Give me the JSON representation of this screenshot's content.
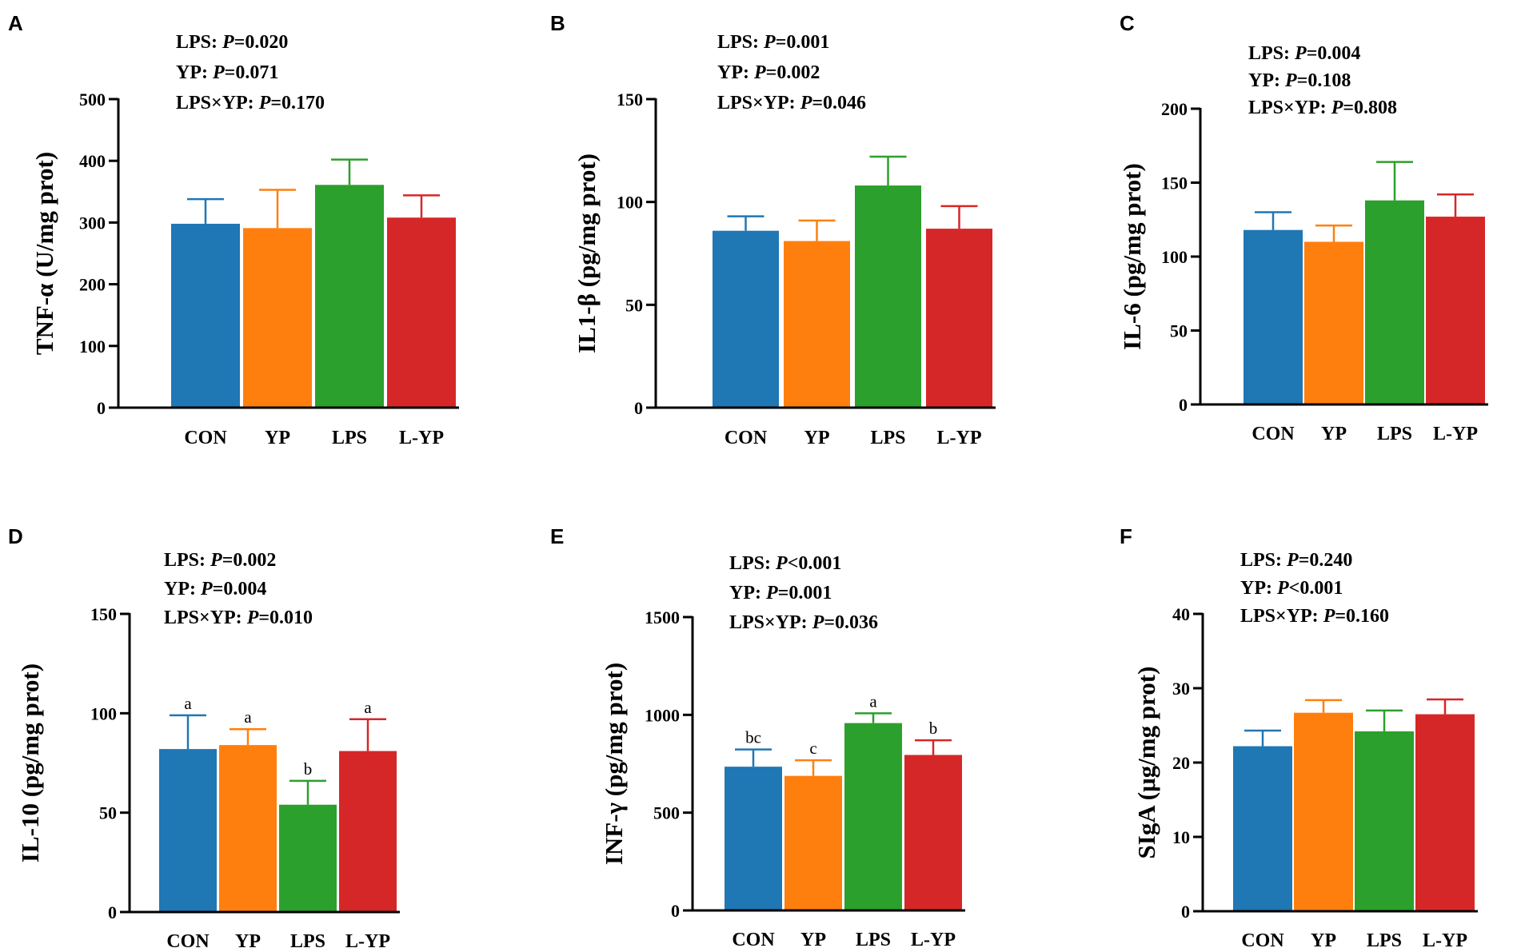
{
  "colors": {
    "CON": "#1f77b4",
    "YP": "#ff7f0e",
    "LPS": "#2ca02c",
    "L-YP": "#d62728",
    "axis": "#000000"
  },
  "chart_data": [
    {
      "panel": "A",
      "type": "bar",
      "ylabel": "TNF-α (U/mg prot)",
      "categories": [
        "CON",
        "YP",
        "LPS",
        "L-YP"
      ],
      "values": [
        298,
        291,
        361,
        308
      ],
      "errors": [
        40,
        62,
        41,
        36
      ],
      "ylim": [
        0,
        500
      ],
      "yticks": [
        0,
        100,
        200,
        300,
        400,
        500
      ],
      "letters": [
        "",
        "",
        "",
        ""
      ],
      "stats": [
        {
          "label": "LPS: ",
          "p": "P",
          "val": "=0.020"
        },
        {
          "label": "YP: ",
          "p": "P",
          "val": "=0.071"
        },
        {
          "label": "LPS×YP: ",
          "p": "P",
          "val": "=0.170"
        }
      ]
    },
    {
      "panel": "B",
      "type": "bar",
      "ylabel": "IL1-β (pg/mg prot)",
      "categories": [
        "CON",
        "YP",
        "LPS",
        "L-YP"
      ],
      "values": [
        86,
        81,
        108,
        87
      ],
      "errors": [
        7,
        10,
        14,
        11
      ],
      "ylim": [
        0,
        150
      ],
      "yticks": [
        0,
        50,
        100,
        150
      ],
      "letters": [
        "",
        "",
        "",
        ""
      ],
      "stats": [
        {
          "label": "LPS: ",
          "p": "P",
          "val": "=0.001"
        },
        {
          "label": "YP: ",
          "p": "P",
          "val": "=0.002"
        },
        {
          "label": "LPS×YP: ",
          "p": "P",
          "val": "=0.046"
        }
      ]
    },
    {
      "panel": "C",
      "type": "bar",
      "ylabel": "IL-6 (pg/mg prot)",
      "categories": [
        "CON",
        "YP",
        "LPS",
        "L-YP"
      ],
      "values": [
        118,
        110,
        138,
        127
      ],
      "errors": [
        12,
        11,
        26,
        15
      ],
      "ylim": [
        0,
        200
      ],
      "yticks": [
        0,
        50,
        100,
        150,
        200
      ],
      "letters": [
        "",
        "",
        "",
        ""
      ],
      "stats": [
        {
          "label": "LPS: ",
          "p": "P",
          "val": "=0.004"
        },
        {
          "label": "YP: ",
          "p": "P",
          "val": "=0.108"
        },
        {
          "label": "LPS×YP: ",
          "p": "P",
          "val": "=0.808"
        }
      ]
    },
    {
      "panel": "D",
      "type": "bar",
      "ylabel": "IL-10 (pg/mg prot)",
      "categories": [
        "CON",
        "YP",
        "LPS",
        "L-YP"
      ],
      "values": [
        82,
        84,
        54,
        81
      ],
      "errors": [
        17,
        8,
        12,
        16
      ],
      "ylim": [
        0,
        150
      ],
      "yticks": [
        0,
        50,
        100,
        150
      ],
      "letters": [
        "a",
        "a",
        "b",
        "a"
      ],
      "stats": [
        {
          "label": "LPS: ",
          "p": "P",
          "val": "=0.002"
        },
        {
          "label": "YP: ",
          "p": "P",
          "val": "=0.004"
        },
        {
          "label": "LPS×YP: ",
          "p": "P",
          "val": "=0.010"
        }
      ]
    },
    {
      "panel": "E",
      "type": "bar",
      "ylabel": "INF-γ (pg/mg prot)",
      "categories": [
        "CON",
        "YP",
        "LPS",
        "L-YP"
      ],
      "values": [
        735,
        688,
        958,
        795
      ],
      "errors": [
        88,
        80,
        50,
        75
      ],
      "ylim": [
        0,
        1500
      ],
      "yticks": [
        0,
        500,
        1000,
        1500
      ],
      "letters": [
        "bc",
        "c",
        "a",
        "b"
      ],
      "stats": [
        {
          "label": "LPS: ",
          "p": "P",
          "val": "<0.001"
        },
        {
          "label": "YP: ",
          "p": "P",
          "val": "=0.001"
        },
        {
          "label": "LPS×YP: ",
          "p": "P",
          "val": "=0.036"
        }
      ]
    },
    {
      "panel": "F",
      "type": "bar",
      "ylabel": "SIgA (μg/mg prot)",
      "categories": [
        "CON",
        "YP",
        "LPS",
        "L-YP"
      ],
      "values": [
        22.2,
        26.7,
        24.2,
        26.5
      ],
      "errors": [
        2.1,
        1.7,
        2.8,
        2.0
      ],
      "ylim": [
        0,
        40
      ],
      "yticks": [
        0,
        10,
        20,
        30,
        40
      ],
      "letters": [
        "",
        "",
        "",
        ""
      ],
      "stats": [
        {
          "label": "LPS: ",
          "p": "P",
          "val": "=0.240"
        },
        {
          "label": "YP: ",
          "p": "P",
          "val": "<0.001"
        },
        {
          "label": "LPS×YP: ",
          "p": "P",
          "val": "=0.160"
        }
      ]
    }
  ]
}
